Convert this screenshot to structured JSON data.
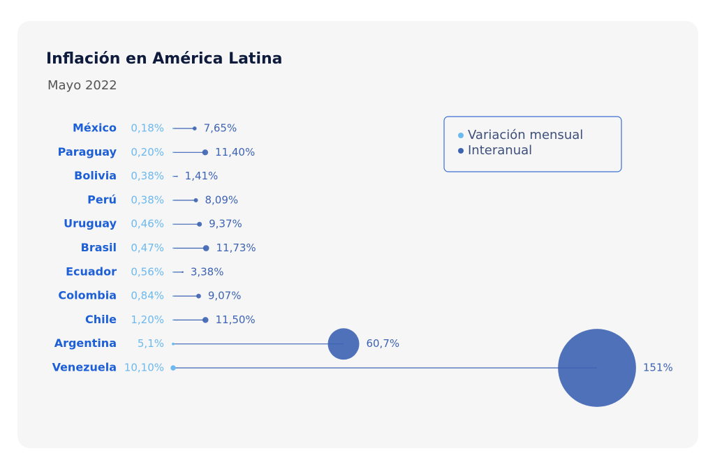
{
  "chart_data": {
    "type": "bubble",
    "title": "Inflación en América Latina",
    "subtitle": "Mayo 2022",
    "legend": "top-right",
    "categories": [
      "México",
      "Paraguay",
      "Bolivia",
      "Perú",
      "Uruguay",
      "Brasil",
      "Ecuador",
      "Colombia",
      "Chile",
      "Argentina",
      "Venezuela"
    ],
    "series": [
      {
        "name": "Variación mensual",
        "color": "#6cb9ef",
        "values": [
          0.18,
          0.2,
          0.38,
          0.38,
          0.46,
          0.47,
          0.56,
          0.84,
          1.2,
          5.1,
          10.1
        ],
        "value_labels": [
          "0,18%",
          "0,20%",
          "0,38%",
          "0,38%",
          "0,46%",
          "0,47%",
          "0,56%",
          "0,84%",
          "1,20%",
          "5,1%",
          "10,10%"
        ]
      },
      {
        "name": "Interanual",
        "color": "#3d63b3",
        "values": [
          7.65,
          11.4,
          1.41,
          8.09,
          9.37,
          11.73,
          3.38,
          9.07,
          11.5,
          60.7,
          151
        ],
        "value_labels": [
          "7,65%",
          "11,40%",
          "1,41%",
          "8,09%",
          "9,37%",
          "11,73%",
          "3,38%",
          "9,07%",
          "11,50%",
          "60,7%",
          "151%"
        ]
      }
    ]
  }
}
